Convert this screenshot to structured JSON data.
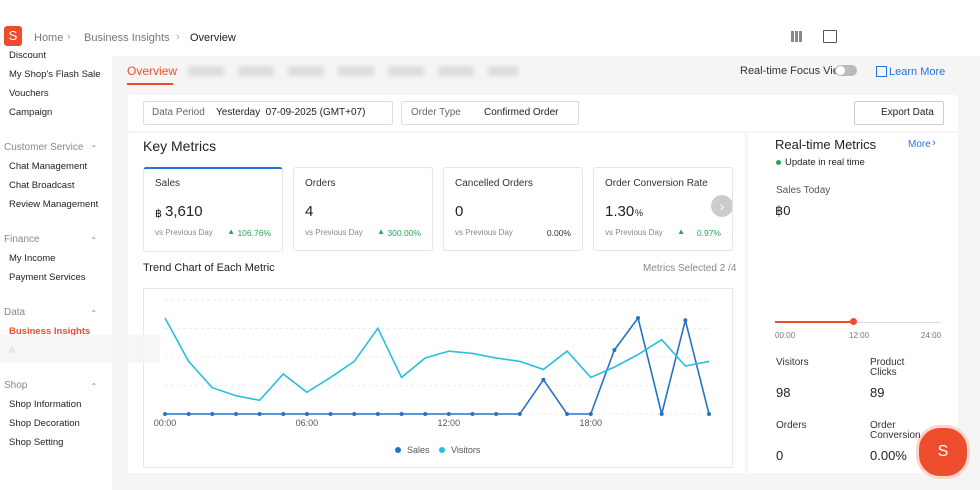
{
  "header": {
    "breadcrumb": [
      "Home",
      "Business Insights",
      "Overview"
    ]
  },
  "sidebar": {
    "top_items": [
      "Discount",
      "My Shop's Flash Sale",
      "Vouchers",
      "Campaign"
    ],
    "groups": [
      {
        "title": "Customer Service",
        "items": [
          "Chat Management",
          "Chat Broadcast",
          "Review Management"
        ]
      },
      {
        "title": "Finance",
        "items": [
          "My Income",
          "Payment Services"
        ]
      },
      {
        "title": "Data",
        "items": [
          "Business Insights",
          "A"
        ]
      },
      {
        "title": "Shop",
        "items": [
          "Shop Information",
          "Shop Decoration",
          "Shop Setting"
        ]
      }
    ]
  },
  "tabs": {
    "active": "Overview",
    "focus_view": "Real-time Focus View",
    "learn_more": "Learn More"
  },
  "filters": {
    "period_label": "Data Period",
    "period_value": "Yesterday  07-09-2025 (GMT+07)",
    "order_type_label": "Order Type",
    "order_type_value": "Confirmed Order",
    "export": "Export Data"
  },
  "key_metrics": {
    "title": "Key Metrics",
    "compare_label": "vs Previous Day",
    "cards": [
      {
        "label": "Sales",
        "prefix": "฿",
        "value": "3,610",
        "change": "106.76%"
      },
      {
        "label": "Orders",
        "value": "4",
        "change": "300.00%"
      },
      {
        "label": "Cancelled Orders",
        "value": "0",
        "change": "0.00%"
      },
      {
        "label": "Order Conversion Rate",
        "value": "1.30",
        "unit": "%",
        "change": "0.97%"
      }
    ]
  },
  "trend": {
    "title": "Trend Chart of Each Metric",
    "selected": "Metrics Selected 2 /4",
    "chart_data": {
      "type": "line",
      "categories": [
        "00:00",
        null,
        null,
        null,
        null,
        null,
        "06:00",
        null,
        null,
        null,
        null,
        null,
        "12:00",
        null,
        null,
        null,
        null,
        null,
        "18:00",
        null,
        null,
        null,
        null,
        null
      ],
      "series": [
        {
          "name": "Sales",
          "color": "#2673c6",
          "values": [
            0,
            0,
            0,
            0,
            0,
            0,
            0,
            0,
            0,
            0,
            0,
            0,
            0,
            0,
            0,
            0,
            30,
            0,
            0,
            56,
            84,
            0,
            82,
            0
          ]
        },
        {
          "name": "Visitors",
          "color": "#27bfdf",
          "values": [
            84,
            46,
            23,
            16,
            12,
            35,
            19,
            32,
            46,
            75,
            32,
            49,
            55,
            53,
            49,
            46,
            39,
            55,
            32,
            41,
            52,
            65,
            42,
            46
          ]
        }
      ]
    }
  },
  "realtime": {
    "title": "Real-time Metrics",
    "more": "More",
    "update": "Update in real time",
    "sales_today_label": "Sales Today",
    "sales_today": "฿0",
    "timeline": [
      "00:00",
      "12:00",
      "24:00"
    ],
    "stats": [
      {
        "label": "Visitors",
        "value": "98"
      },
      {
        "label": "Product Clicks",
        "value": "89"
      },
      {
        "label": "Orders",
        "value": "0"
      },
      {
        "label": "Order Conversion",
        "value": "0.00%"
      }
    ]
  }
}
